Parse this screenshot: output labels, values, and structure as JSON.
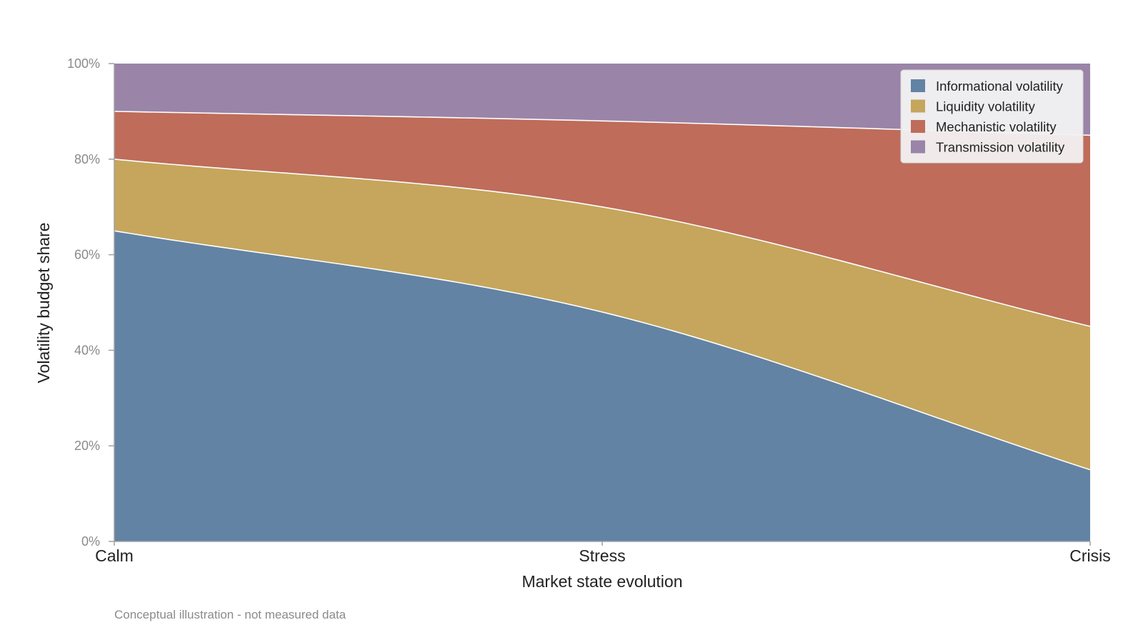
{
  "chart_data": {
    "type": "area",
    "stacked": true,
    "normalized": true,
    "x": [
      "Calm",
      "Stress",
      "Crisis"
    ],
    "xlabel": "Market state evolution",
    "ylabel": "Volatility budget share",
    "ylim": [
      0,
      100
    ],
    "yticks": [
      "0%",
      "20%",
      "40%",
      "60%",
      "80%",
      "100%"
    ],
    "legend_position": "top-right",
    "grid": false,
    "series": [
      {
        "name": "Informational volatility",
        "color": "#6283a4",
        "values": [
          65,
          48,
          15
        ]
      },
      {
        "name": "Liquidity volatility",
        "color": "#c5a65c",
        "values": [
          15,
          22,
          30
        ]
      },
      {
        "name": "Mechanistic volatility",
        "color": "#bf6c5a",
        "values": [
          10,
          18,
          40
        ]
      },
      {
        "name": "Transmission volatility",
        "color": "#9a84a8",
        "values": [
          10,
          12,
          15
        ]
      }
    ],
    "note": "Conceptual illustration - not measured data"
  }
}
